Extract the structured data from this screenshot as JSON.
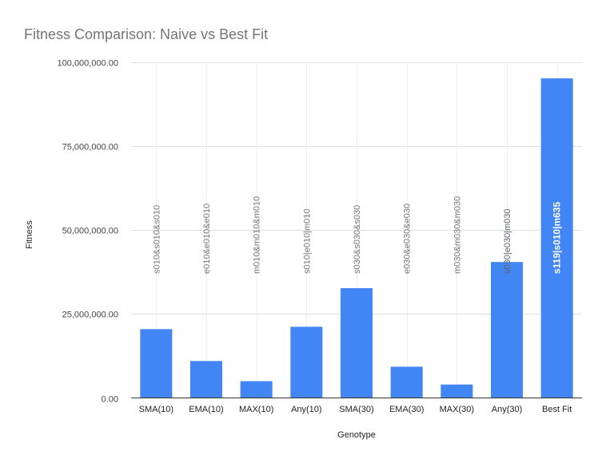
{
  "chart_data": {
    "type": "bar",
    "title": "Fitness Comparison: Naive vs Best Fit",
    "xlabel": "Genotype",
    "ylabel": "Fitness",
    "ylim": [
      0,
      100000000
    ],
    "yticks": [
      0,
      25000000,
      50000000,
      75000000,
      100000000
    ],
    "ytick_labels": [
      "0.00",
      "25,000,000.00",
      "50,000,000.00",
      "75,000,000.00",
      "100,000,000.00"
    ],
    "grid": true,
    "categories": [
      "SMA(10)",
      "EMA(10)",
      "MAX(10)",
      "Any(10)",
      "SMA(30)",
      "EMA(30)",
      "MAX(30)",
      "Any(30)",
      "Best Fit"
    ],
    "values": [
      20500000,
      11000000,
      5000000,
      21200000,
      32700000,
      9300000,
      4000000,
      40500000,
      95200000
    ],
    "bar_labels": [
      "s010&s010&s010",
      "e010&e010&e010",
      "m010&m010&m010",
      "s010|e010|m010",
      "s030&s030&s030",
      "e030&e030&e030",
      "m030&m030&m030",
      "s030|e030|m030",
      "s119|s010|m635"
    ],
    "bar_color": "#4285f4",
    "label_color": "#757575",
    "label_color_inside": "#ffffff"
  }
}
